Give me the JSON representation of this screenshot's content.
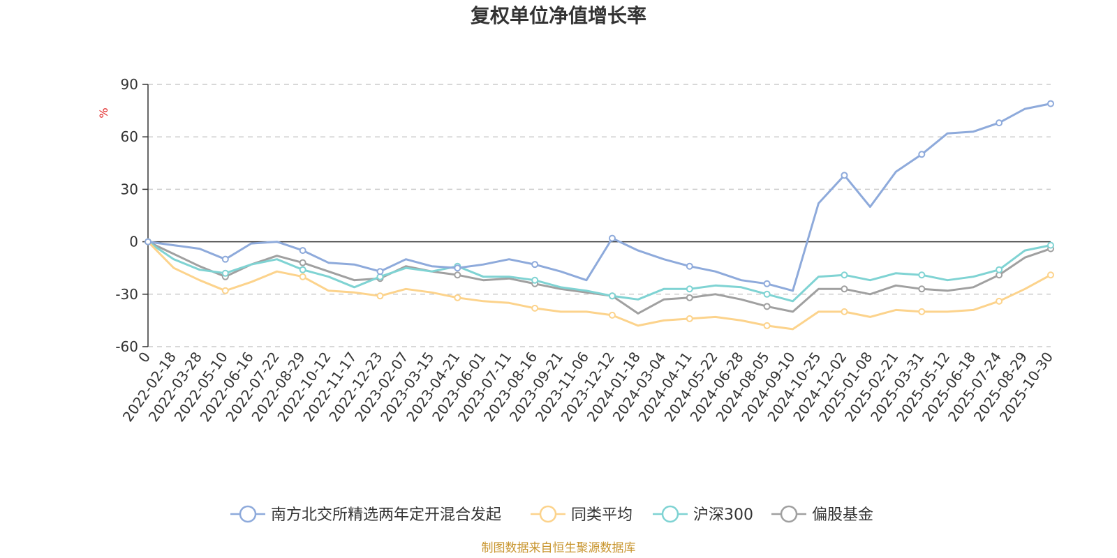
{
  "chart_data": {
    "type": "line",
    "title": "复权单位净值增长率",
    "y_unit": "%",
    "ylim": [
      -60,
      90
    ],
    "y_ticks": [
      "90",
      "60",
      "30",
      "0",
      "-30",
      "-60"
    ],
    "y_tick_values": [
      90,
      60,
      30,
      0,
      -30,
      -60
    ],
    "grid": "horizontal dashed",
    "legend_position": "bottom",
    "x_tick_labels": [
      "0",
      "2022-02-18",
      "2022-03-28",
      "2022-05-10",
      "2022-06-16",
      "2022-07-22",
      "2022-08-29",
      "2022-10-12",
      "2022-11-17",
      "2022-12-23",
      "2023-02-07",
      "2023-03-15",
      "2023-04-21",
      "2023-06-01",
      "2023-07-11",
      "2023-08-16",
      "2023-09-21",
      "2023-11-06",
      "2023-12-12",
      "2024-01-18",
      "2024-03-04",
      "2024-04-11",
      "2024-05-22",
      "2024-06-28",
      "2024-08-05",
      "2024-09-10",
      "2024-10-25",
      "2024-12-02",
      "2025-01-08",
      "2025-02-21",
      "2025-03-31",
      "2025-05-12",
      "2025-06-18",
      "2025-07-24",
      "2025-08-29",
      "2025-10-30"
    ],
    "series": [
      {
        "name": "南方北交所精选两年定开混合发起",
        "color": "#8eaadb",
        "values": [
          0,
          -2,
          -4,
          -10,
          -1,
          0,
          -5,
          -12,
          -13,
          -17,
          -10,
          -14,
          -15,
          -13,
          -10,
          -13,
          -17,
          -22,
          2,
          -5,
          -10,
          -14,
          -17,
          -22,
          -24,
          -28,
          22,
          38,
          20,
          40,
          50,
          62,
          63,
          68,
          76,
          79
        ]
      },
      {
        "name": "同类平均",
        "color": "#fcd38c",
        "values": [
          0,
          -15,
          -22,
          -28,
          -23,
          -17,
          -20,
          -28,
          -29,
          -31,
          -27,
          -29,
          -32,
          -34,
          -35,
          -38,
          -40,
          -40,
          -42,
          -48,
          -45,
          -44,
          -43,
          -45,
          -48,
          -50,
          -40,
          -40,
          -43,
          -39,
          -40,
          -40,
          -39,
          -34,
          -27,
          -19
        ]
      },
      {
        "name": "沪深300",
        "color": "#7fd3d3",
        "values": [
          0,
          -10,
          -16,
          -18,
          -13,
          -10,
          -16,
          -20,
          -26,
          -20,
          -15,
          -17,
          -14,
          -20,
          -20,
          -22,
          -26,
          -28,
          -31,
          -33,
          -27,
          -27,
          -25,
          -26,
          -30,
          -34,
          -20,
          -19,
          -22,
          -18,
          -19,
          -22,
          -20,
          -16,
          -5,
          -2
        ]
      },
      {
        "name": "偏股基金",
        "color": "#a0a0a0",
        "values": [
          0,
          -7,
          -14,
          -20,
          -13,
          -8,
          -12,
          -17,
          -22,
          -21,
          -14,
          -17,
          -19,
          -22,
          -21,
          -24,
          -27,
          -29,
          -31,
          -41,
          -33,
          -32,
          -30,
          -33,
          -37,
          -40,
          -27,
          -27,
          -30,
          -25,
          -27,
          -28,
          -26,
          -19,
          -9,
          -4
        ]
      }
    ]
  },
  "legend": {
    "items": [
      "南方北交所精选两年定开混合发起",
      "同类平均",
      "沪深300",
      "偏股基金"
    ]
  },
  "source_note": "制图数据来自恒生聚源数据库"
}
